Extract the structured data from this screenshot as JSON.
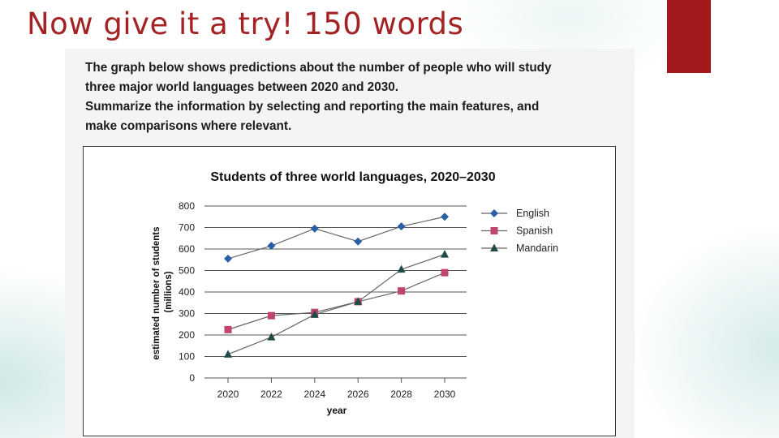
{
  "slide": {
    "title": "Now give it a try! 150 words",
    "accent_color": "#a31a1d",
    "title_color": "#a32324"
  },
  "prompt": {
    "lines": [
      "The graph below shows predictions about the number of people who will study",
      "three major world languages between 2020 and 2030.",
      "Summarize the information by selecting and reporting the main features, and",
      "make comparisons where relevant."
    ]
  },
  "chart_data": {
    "type": "line",
    "title": "Students of three world languages, 2020–2030",
    "xlabel": "year",
    "ylabel": "estimated number of students (millions)",
    "x": [
      "2020",
      "2022",
      "2024",
      "2026",
      "2028",
      "2030"
    ],
    "ylim": [
      0,
      800
    ],
    "yticks": [
      "0",
      "100",
      "200",
      "300",
      "400",
      "500",
      "600",
      "700",
      "800"
    ],
    "grid": true,
    "legend_position": "right",
    "series": [
      {
        "name": "English",
        "marker": "diamond",
        "color": "#2a5fa8",
        "values": [
          555,
          615,
          695,
          635,
          705,
          750
        ]
      },
      {
        "name": "Spanish",
        "marker": "square",
        "color": "#c0446b",
        "values": [
          225,
          290,
          305,
          355,
          405,
          490
        ]
      },
      {
        "name": "Mandarin",
        "marker": "triangle",
        "color": "#1f4a46",
        "values": [
          110,
          190,
          295,
          355,
          505,
          575
        ]
      }
    ]
  }
}
